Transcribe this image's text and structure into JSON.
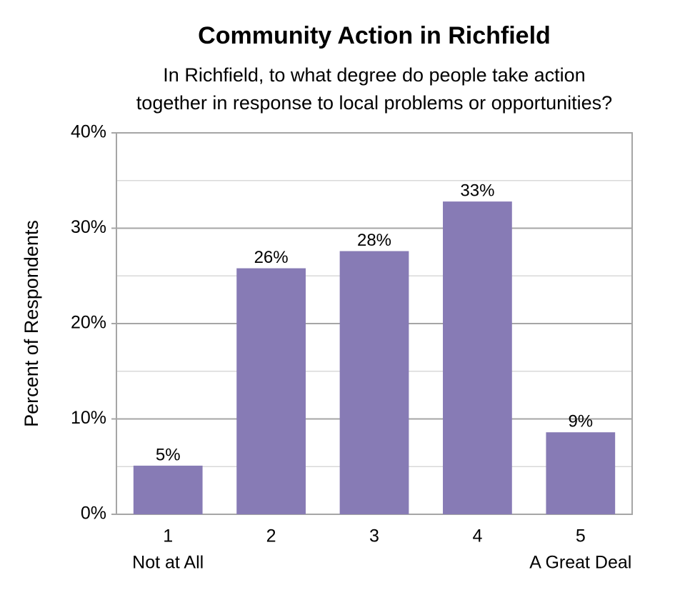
{
  "chart_data": {
    "type": "bar",
    "title": "Community Action in Richfield",
    "subtitle": [
      "In Richfield, to what degree do people take action",
      "together in response to local problems or opportunities?"
    ],
    "y_label": "Percent of Respondents",
    "categories": [
      "1",
      "2",
      "3",
      "4",
      "5"
    ],
    "category_sublabels": [
      "Not at All",
      null,
      null,
      null,
      "A Great Deal"
    ],
    "values": [
      5.1,
      25.8,
      27.6,
      32.8,
      8.6
    ],
    "value_labels": [
      "5%",
      "26%",
      "28%",
      "33%",
      "9%"
    ],
    "color": "#877bb5",
    "ylim": [
      0,
      40
    ],
    "yticks": [
      {
        "value": 0,
        "label": "0%"
      },
      {
        "value": 10,
        "label": "10%"
      },
      {
        "value": 20,
        "label": "20%"
      },
      {
        "value": 30,
        "label": "30%"
      },
      {
        "value": 40,
        "label": "40%"
      }
    ],
    "minor_yticks": [
      5,
      15,
      25,
      35
    ],
    "grid": true
  }
}
